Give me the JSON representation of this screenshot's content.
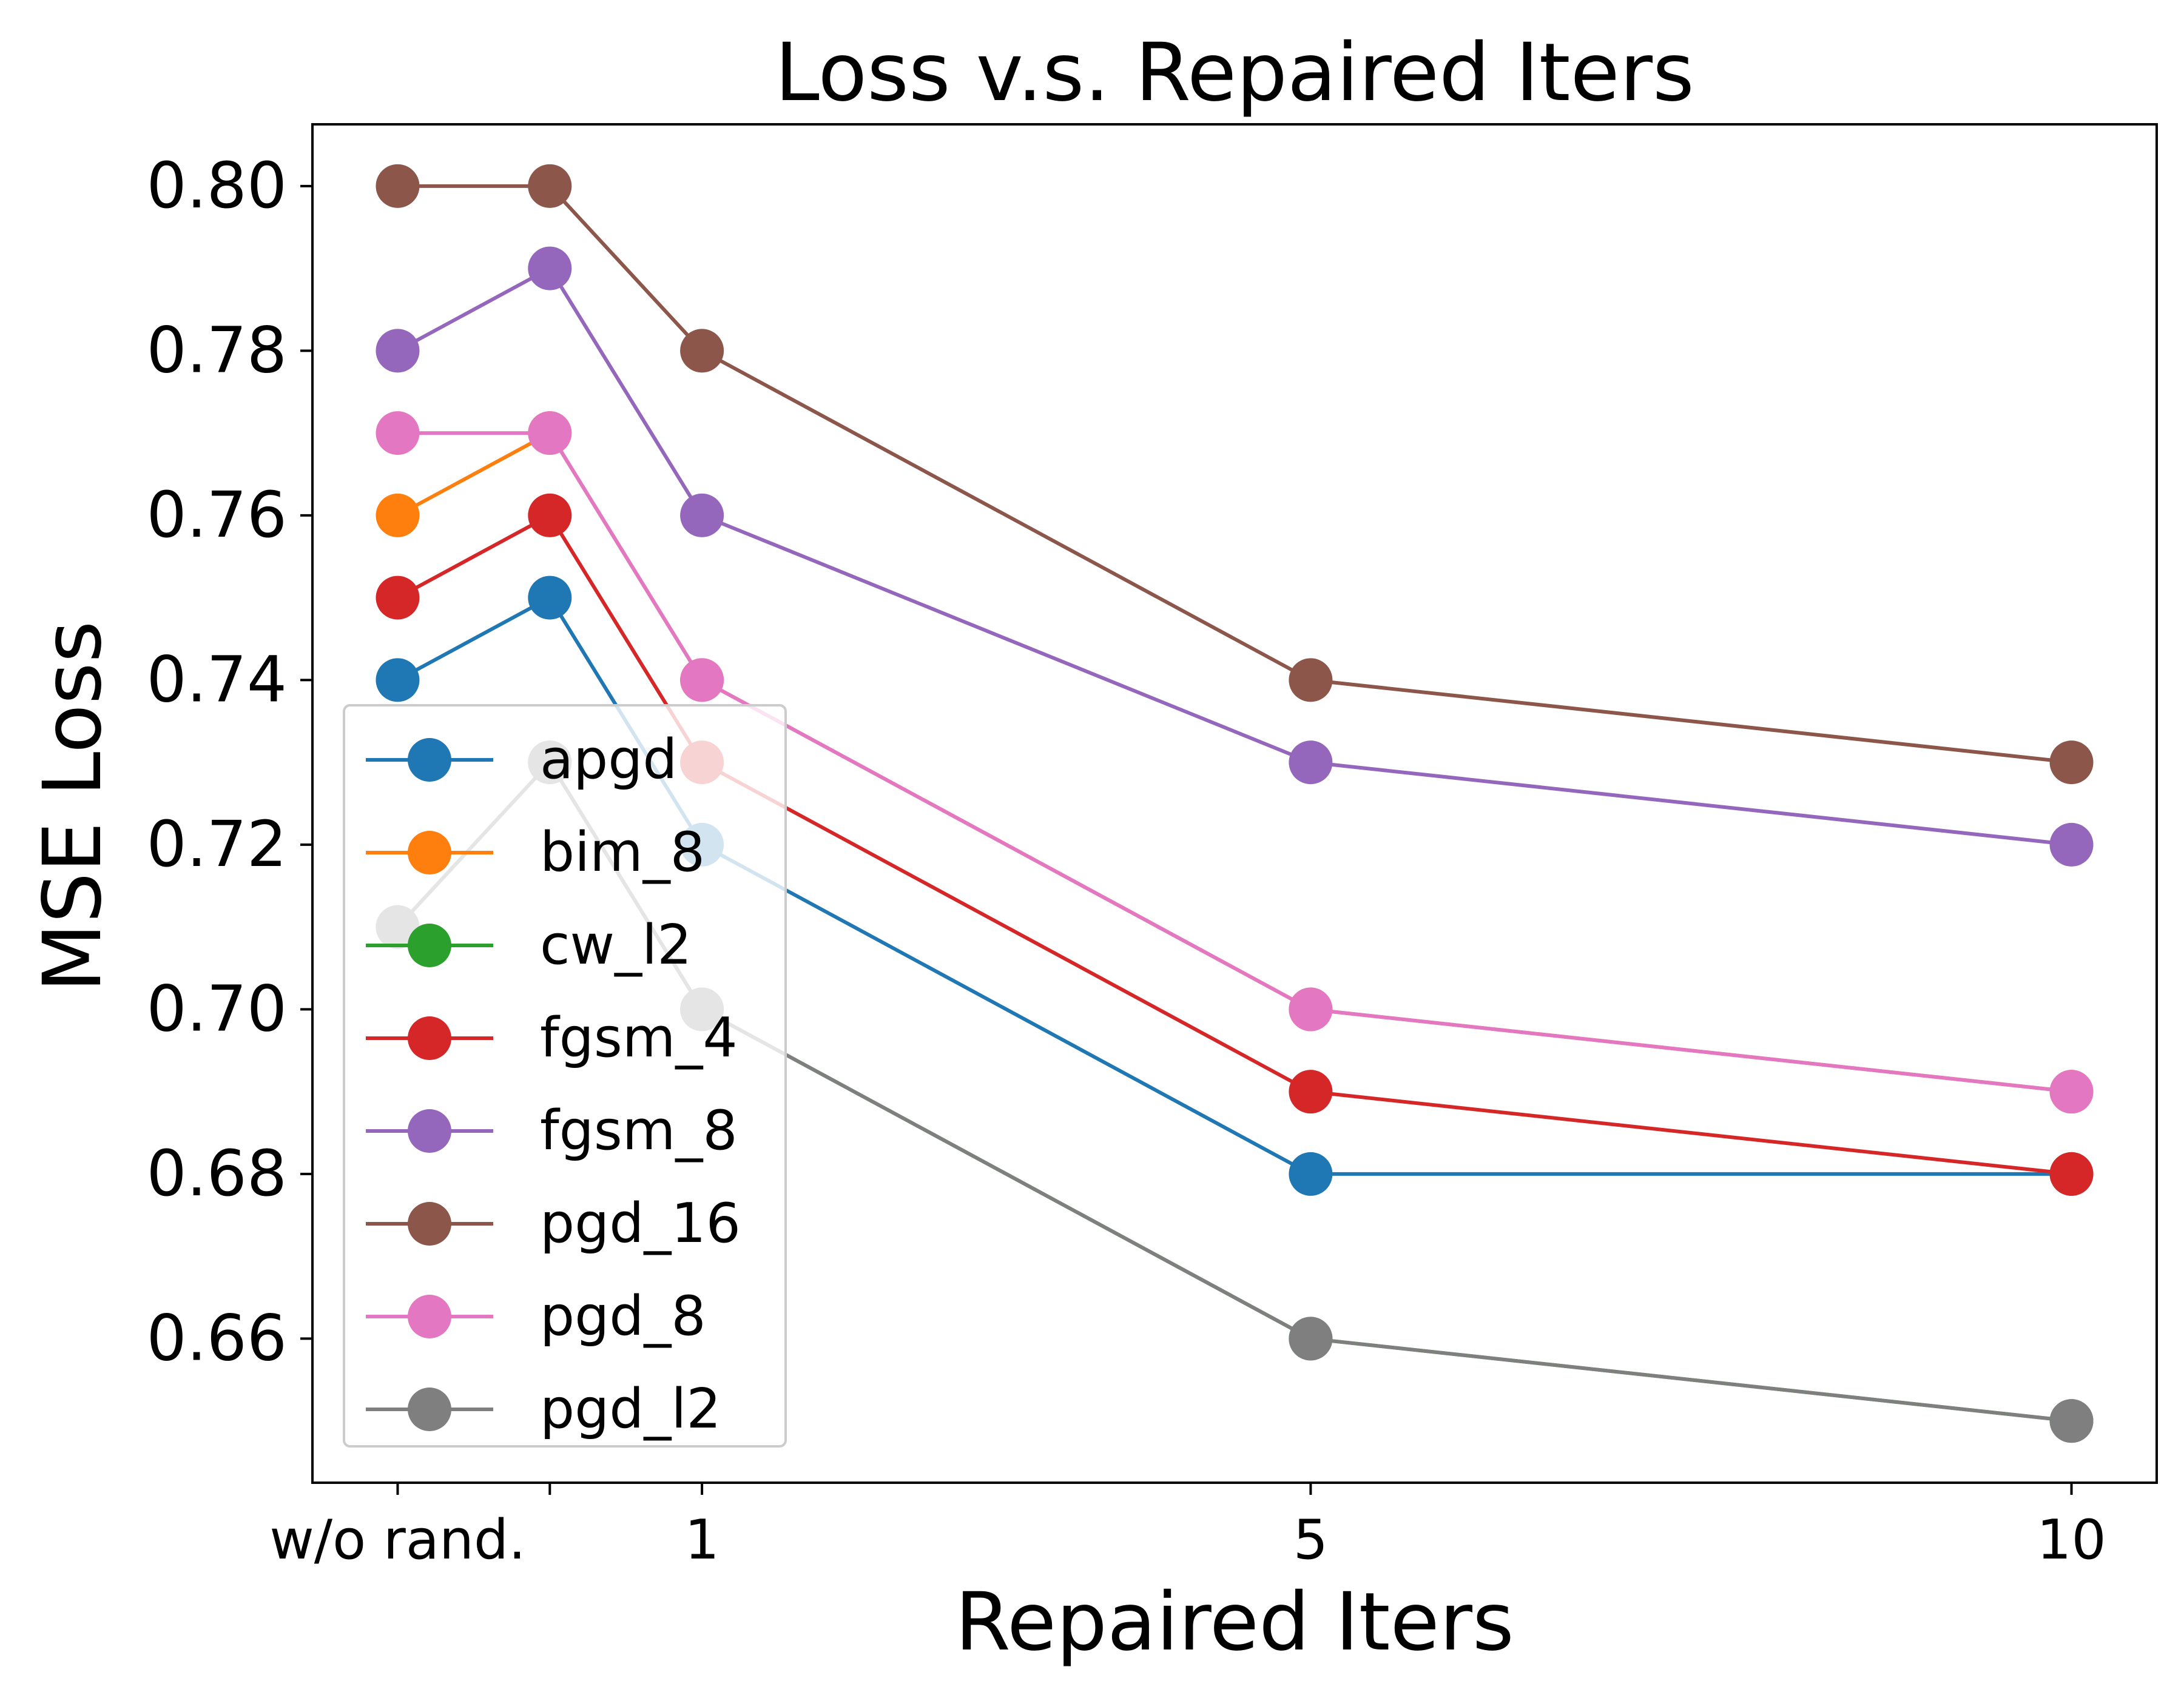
{
  "chart_data": {
    "type": "line",
    "title": "Loss v.s. Repaired Iters",
    "xlabel": "Repaired Iters",
    "ylabel": "MSE Loss",
    "x_positions": [
      0,
      0.5,
      1,
      3,
      5.5
    ],
    "x_ticks": [
      {
        "value": 0,
        "label": "w/o rand."
      },
      {
        "value": 1,
        "label": "1"
      },
      {
        "value": 3,
        "label": "5"
      },
      {
        "value": 5.5,
        "label": "10"
      }
    ],
    "y_ticks": [
      0.66,
      0.68,
      0.7,
      0.72,
      0.74,
      0.76,
      0.78,
      0.8
    ],
    "y_tick_labels": [
      "0.66",
      "0.68",
      "0.70",
      "0.72",
      "0.74",
      "0.76",
      "0.78",
      "0.80"
    ],
    "xlim": [
      -0.28,
      5.78
    ],
    "ylim": [
      0.6425,
      0.8075
    ],
    "grid": false,
    "legend": "lower-left",
    "series": [
      {
        "name": "apgd",
        "color": "#1f77b4",
        "values": [
          0.74,
          0.75,
          0.72,
          0.68,
          0.68
        ]
      },
      {
        "name": "bim_8",
        "color": "#ff7f0e",
        "values": [
          0.76,
          0.77,
          0.74,
          0.7,
          0.69
        ]
      },
      {
        "name": "cw_l2",
        "color": "#2ca02c",
        "values": [
          0.71,
          0.73,
          0.7,
          0.66,
          0.65
        ]
      },
      {
        "name": "fgsm_4",
        "color": "#d62728",
        "values": [
          0.75,
          0.76,
          0.73,
          0.69,
          0.68
        ]
      },
      {
        "name": "fgsm_8",
        "color": "#9467bd",
        "values": [
          0.78,
          0.79,
          0.76,
          0.73,
          0.72
        ]
      },
      {
        "name": "pgd_16",
        "color": "#8c564b",
        "values": [
          0.8,
          0.8,
          0.78,
          0.74,
          0.73
        ]
      },
      {
        "name": "pgd_8",
        "color": "#e377c2",
        "values": [
          0.77,
          0.77,
          0.74,
          0.7,
          0.69
        ]
      },
      {
        "name": "pgd_l2",
        "color": "#7f7f7f",
        "values": [
          0.71,
          0.73,
          0.7,
          0.66,
          0.65
        ]
      }
    ]
  }
}
